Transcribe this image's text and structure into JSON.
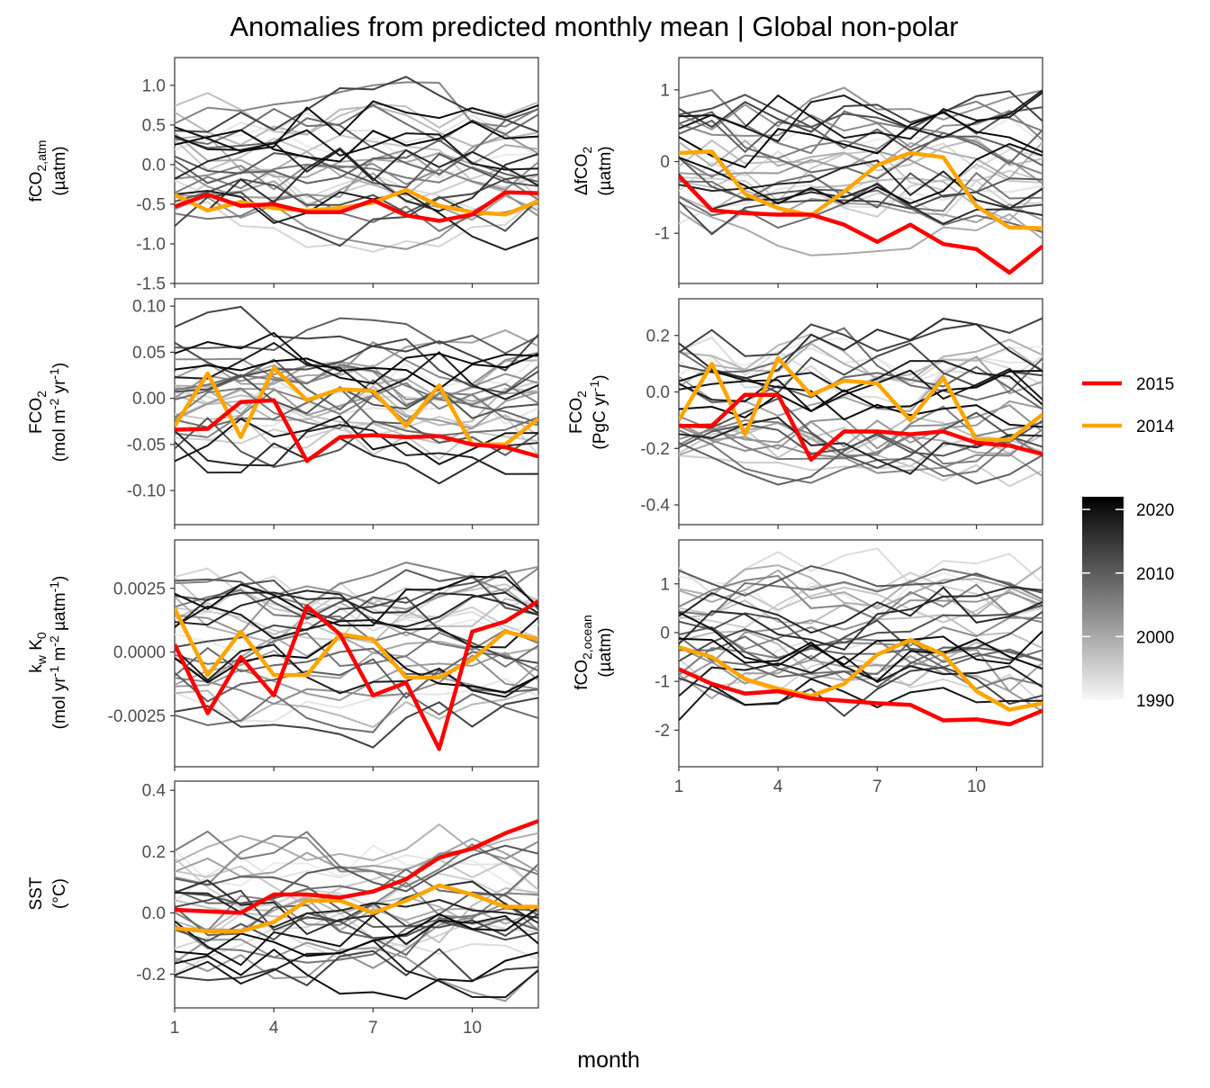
{
  "title": "Anomalies from predicted monthly mean | Global non-polar",
  "x_axis": {
    "label": "month",
    "ticks": [
      1,
      4,
      7,
      10
    ],
    "range": [
      1,
      12
    ]
  },
  "legend": {
    "placement": "right",
    "lines": [
      {
        "name": "2015",
        "color": "#ff0000"
      },
      {
        "name": "2014",
        "color": "#ffa500"
      }
    ],
    "colorbar": {
      "ticks": [
        "2020",
        "2010",
        "2000",
        "1990"
      ],
      "range": [
        1990,
        2022
      ],
      "low_color": "#f7f7f7",
      "high_color": "#000000"
    }
  },
  "panel_labels": {
    "fco2atm": {
      "main": "fCO",
      "sub1": "2,atm",
      "unit": "(µatm)"
    },
    "dfco2": {
      "main": "ΔfCO",
      "sub1": "2",
      "unit": "(µatm)"
    },
    "fco2flux": {
      "main": "FCO",
      "sub1": "2",
      "unit_a": "(mol m",
      "sup_a": "-2",
      "unit_b": " yr",
      "sup_b": "-1",
      "unit_c": ")"
    },
    "fco2pgc": {
      "main": "FCO",
      "sub1": "2",
      "unit_a": "(PgC yr",
      "sup_a": "-1",
      "unit_c": ")"
    },
    "kwk0": {
      "main_a": "k",
      "sub_a": "w",
      "main_b": " K",
      "sub_b": "0",
      "unit_a": "(mol yr",
      "sup_a": "-1",
      "unit_b": " m",
      "sup_b": "-2",
      "unit_c": " µatm",
      "sup_c": "-1",
      "unit_d": ")"
    },
    "fco2ocean": {
      "main": "fCO",
      "sub1": "2,ocean",
      "unit": "(µatm)"
    },
    "sst": {
      "main": "SST",
      "unit": "(°C)"
    }
  },
  "chart_data": [
    {
      "id": "fco2atm",
      "type": "line",
      "ylim": [
        -1.5,
        1.35
      ],
      "yticks": [
        1.0,
        0.5,
        0.0,
        -0.5,
        -1.0,
        -1.5
      ],
      "ytick_labels": [
        "1.0",
        "0.5",
        "0.0",
        "-0.5",
        "-1.0",
        "-1.5"
      ],
      "series": [
        {
          "name": "2015",
          "color": "#ff0000",
          "x": [
            1,
            2,
            3,
            4,
            5,
            6,
            7,
            8,
            9,
            10,
            11,
            12
          ],
          "values": [
            -0.53,
            -0.38,
            -0.52,
            -0.5,
            -0.6,
            -0.6,
            -0.45,
            -0.64,
            -0.71,
            -0.63,
            -0.35,
            -0.36
          ]
        },
        {
          "name": "2014",
          "color": "#ffa500",
          "x": [
            1,
            2,
            3,
            4,
            5,
            6,
            7,
            8,
            9,
            10,
            11,
            12
          ],
          "values": [
            -0.38,
            -0.58,
            -0.47,
            -0.55,
            -0.58,
            -0.55,
            -0.48,
            -0.32,
            -0.52,
            -0.6,
            -0.63,
            -0.46
          ]
        }
      ]
    },
    {
      "id": "dfco2",
      "type": "line",
      "ylim": [
        -1.7,
        1.45
      ],
      "yticks": [
        1,
        0,
        -1
      ],
      "ytick_labels": [
        "1",
        "0",
        "-1"
      ],
      "series": [
        {
          "name": "2015",
          "color": "#ff0000",
          "x": [
            1,
            2,
            3,
            4,
            5,
            6,
            7,
            8,
            9,
            10,
            11,
            12
          ],
          "values": [
            -0.2,
            -0.68,
            -0.72,
            -0.74,
            -0.74,
            -0.88,
            -1.12,
            -0.88,
            -1.15,
            -1.22,
            -1.55,
            -1.18
          ]
        },
        {
          "name": "2014",
          "color": "#ffa500",
          "x": [
            1,
            2,
            3,
            4,
            5,
            6,
            7,
            8,
            9,
            10,
            11,
            12
          ],
          "values": [
            0.12,
            0.14,
            -0.45,
            -0.65,
            -0.75,
            -0.42,
            -0.05,
            0.12,
            0.06,
            -0.62,
            -0.92,
            -0.93
          ]
        }
      ]
    },
    {
      "id": "fco2flux",
      "type": "line",
      "ylim": [
        -0.137,
        0.108
      ],
      "yticks": [
        0.1,
        0.05,
        0.0,
        -0.05,
        -0.1
      ],
      "ytick_labels": [
        "0.10",
        "0.05",
        "0.00",
        "-0.05",
        "-0.10"
      ],
      "series": [
        {
          "name": "2015",
          "color": "#ff0000",
          "x": [
            1,
            2,
            3,
            4,
            5,
            6,
            7,
            8,
            9,
            10,
            11,
            12
          ],
          "values": [
            -0.034,
            -0.033,
            -0.004,
            -0.002,
            -0.068,
            -0.042,
            -0.04,
            -0.042,
            -0.041,
            -0.05,
            -0.053,
            -0.063
          ]
        },
        {
          "name": "2014",
          "color": "#ffa500",
          "x": [
            1,
            2,
            3,
            4,
            5,
            6,
            7,
            8,
            9,
            10,
            11,
            12
          ],
          "values": [
            -0.03,
            0.027,
            -0.042,
            0.033,
            -0.002,
            0.01,
            0.008,
            -0.03,
            0.014,
            -0.05,
            -0.05,
            -0.022
          ]
        }
      ]
    },
    {
      "id": "fco2pgc",
      "type": "line",
      "ylim": [
        -0.47,
        0.33
      ],
      "yticks": [
        0.2,
        0.0,
        -0.2,
        -0.4
      ],
      "ytick_labels": [
        "0.2",
        "0.0",
        "-0.2",
        "-0.4"
      ],
      "series": [
        {
          "name": "2015",
          "color": "#ff0000",
          "x": [
            1,
            2,
            3,
            4,
            5,
            6,
            7,
            8,
            9,
            10,
            11,
            12
          ],
          "values": [
            -0.12,
            -0.12,
            -0.01,
            -0.01,
            -0.24,
            -0.14,
            -0.14,
            -0.15,
            -0.14,
            -0.18,
            -0.19,
            -0.22
          ]
        },
        {
          "name": "2014",
          "color": "#ffa500",
          "x": [
            1,
            2,
            3,
            4,
            5,
            6,
            7,
            8,
            9,
            10,
            11,
            12
          ],
          "values": [
            -0.1,
            0.1,
            -0.15,
            0.12,
            -0.01,
            0.04,
            0.03,
            -0.1,
            0.05,
            -0.17,
            -0.17,
            -0.08
          ]
        }
      ]
    },
    {
      "id": "kwk0",
      "type": "line",
      "ylim": [
        -0.0045,
        0.0044
      ],
      "yticks": [
        0.0025,
        0.0,
        -0.0025
      ],
      "ytick_labels": [
        "0.0025",
        "0.0000",
        "-0.0025"
      ],
      "series": [
        {
          "name": "2015",
          "color": "#ff0000",
          "x": [
            1,
            2,
            3,
            4,
            5,
            6,
            7,
            8,
            9,
            10,
            11,
            12
          ],
          "values": [
            0.0003,
            -0.0024,
            -0.0002,
            -0.0017,
            0.0018,
            0.0007,
            -0.0017,
            -0.0012,
            -0.0038,
            0.0008,
            0.0012,
            0.002
          ]
        },
        {
          "name": "2014",
          "color": "#ffa500",
          "x": [
            1,
            2,
            3,
            4,
            5,
            6,
            7,
            8,
            9,
            10,
            11,
            12
          ],
          "values": [
            0.0017,
            -0.0009,
            0.0008,
            -0.0009,
            -0.0009,
            0.0007,
            0.0005,
            -0.001,
            -0.001,
            -0.0003,
            0.0008,
            0.0005
          ]
        }
      ]
    },
    {
      "id": "fco2ocean",
      "type": "line",
      "ylim": [
        -2.75,
        1.9
      ],
      "yticks": [
        1,
        0,
        -1,
        -2
      ],
      "ytick_labels": [
        "1",
        "0",
        "-1",
        "-2"
      ],
      "series": [
        {
          "name": "2015",
          "color": "#ff0000",
          "x": [
            1,
            2,
            3,
            4,
            5,
            6,
            7,
            8,
            9,
            10,
            11,
            12
          ],
          "values": [
            -0.75,
            -1.05,
            -1.25,
            -1.2,
            -1.35,
            -1.4,
            -1.45,
            -1.48,
            -1.8,
            -1.78,
            -1.88,
            -1.6
          ]
        },
        {
          "name": "2014",
          "color": "#ffa500",
          "x": [
            1,
            2,
            3,
            4,
            5,
            6,
            7,
            8,
            9,
            10,
            11,
            12
          ],
          "values": [
            -0.3,
            -0.5,
            -0.95,
            -1.15,
            -1.3,
            -1.05,
            -0.45,
            -0.15,
            -0.45,
            -1.2,
            -1.58,
            -1.45
          ]
        }
      ]
    },
    {
      "id": "sst",
      "type": "line",
      "ylim": [
        -0.31,
        0.43
      ],
      "yticks": [
        0.4,
        0.2,
        0.0,
        -0.2
      ],
      "ytick_labels": [
        "0.4",
        "0.2",
        "0.0",
        "-0.2"
      ],
      "series": [
        {
          "name": "2015",
          "color": "#ff0000",
          "x": [
            1,
            2,
            3,
            4,
            5,
            6,
            7,
            8,
            9,
            10,
            11,
            12
          ],
          "values": [
            0.01,
            0.005,
            0.0,
            0.06,
            0.06,
            0.05,
            0.07,
            0.11,
            0.18,
            0.21,
            0.26,
            0.3
          ]
        },
        {
          "name": "2014",
          "color": "#ffa500",
          "x": [
            1,
            2,
            3,
            4,
            5,
            6,
            7,
            8,
            9,
            10,
            11,
            12
          ],
          "values": [
            -0.05,
            -0.06,
            -0.06,
            -0.03,
            0.04,
            0.04,
            0.0,
            0.04,
            0.09,
            0.06,
            0.02,
            0.02
          ]
        }
      ]
    }
  ]
}
